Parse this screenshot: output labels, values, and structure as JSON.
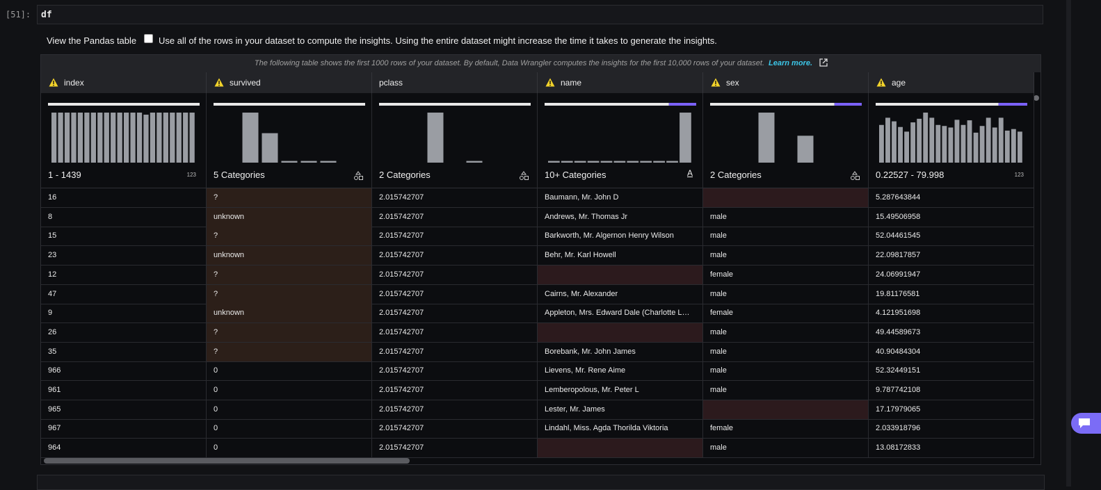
{
  "cell": {
    "prompt": "[51]:",
    "code": "df"
  },
  "toolbar": {
    "view_label": "View the Pandas table",
    "checkbox_label": "Use all of the rows in your dataset to compute the insights. Using the entire dataset might increase the time it takes to generate the insights."
  },
  "table": {
    "notice": "The following table shows the first 1000 rows of your dataset. By default, Data Wrangler computes the insights for the first 10,000 rows of your dataset.",
    "learn_more": "Learn more.",
    "columns": [
      {
        "name": "index",
        "warning": true,
        "summary": "1 - 1439",
        "type_label": "123",
        "valid_fraction": 1,
        "histogram": [
          100,
          100,
          100,
          100,
          100,
          100,
          100,
          100,
          100,
          100,
          100,
          100,
          100,
          100,
          96,
          100,
          100,
          100,
          100,
          100,
          100,
          100
        ]
      },
      {
        "name": "survived",
        "warning": true,
        "summary": "5 Categories",
        "valid_fraction": 1,
        "histogram": [
          100,
          60,
          6,
          6,
          6
        ]
      },
      {
        "name": "pclass",
        "warning": false,
        "summary": "2 Categories",
        "valid_fraction": 1,
        "histogram": [
          100,
          null,
          6
        ]
      },
      {
        "name": "name",
        "warning": true,
        "summary": "10+ Categories",
        "type_label": "A",
        "valid_fraction": 0.82,
        "histogram": [
          6,
          6,
          6,
          6,
          6,
          6,
          6,
          6,
          6,
          6,
          100
        ]
      },
      {
        "name": "sex",
        "warning": true,
        "summary": "2 Categories",
        "valid_fraction": 0.82,
        "histogram": [
          100,
          null,
          55
        ]
      },
      {
        "name": "age",
        "warning": true,
        "summary": "0.22527 - 79.998",
        "type_label": "123",
        "valid_fraction": 0.81,
        "histogram": [
          76,
          90,
          83,
          72,
          63,
          81,
          88,
          100,
          90,
          76,
          74,
          71,
          86,
          76,
          85,
          61,
          74,
          90,
          71,
          90,
          65,
          68,
          63
        ]
      }
    ],
    "rows": [
      [
        16,
        "?",
        2.015742707,
        "Baumann, Mr. John D",
        null,
        5.287643844
      ],
      [
        8,
        "unknown",
        2.015742707,
        "Andrews, Mr. Thomas Jr",
        "male",
        15.49506958
      ],
      [
        15,
        "?",
        2.015742707,
        "Barkworth, Mr. Algernon Henry Wilson",
        "male",
        52.04461545
      ],
      [
        23,
        "unknown",
        2.015742707,
        "Behr, Mr. Karl Howell",
        "male",
        22.09817857
      ],
      [
        12,
        "?",
        2.015742707,
        null,
        "female",
        24.06991947
      ],
      [
        47,
        "?",
        2.015742707,
        "Cairns, Mr. Alexander",
        "male",
        19.81176581
      ],
      [
        9,
        "unknown",
        2.015742707,
        "Appleton, Mrs. Edward Dale (Charlotte L…",
        "female",
        4.121951698
      ],
      [
        26,
        "?",
        2.015742707,
        null,
        "male",
        49.44589673
      ],
      [
        35,
        "?",
        2.015742707,
        "Borebank, Mr. John James",
        "male",
        40.90484304
      ],
      [
        966,
        0,
        2.015742707,
        "Lievens, Mr. Rene Aime",
        "male",
        52.32449151
      ],
      [
        961,
        0,
        2.015742707,
        "Lemberopolous, Mr. Peter L",
        "male",
        9.787742108
      ],
      [
        965,
        0,
        2.015742707,
        "Lester, Mr. James",
        null,
        17.17979065
      ],
      [
        967,
        0,
        2.015742707,
        "Lindahl, Miss. Agda Thorilda Viktoria",
        "female",
        2.033918796
      ],
      [
        964,
        0,
        2.015742707,
        null,
        "male",
        13.08172833
      ]
    ]
  }
}
